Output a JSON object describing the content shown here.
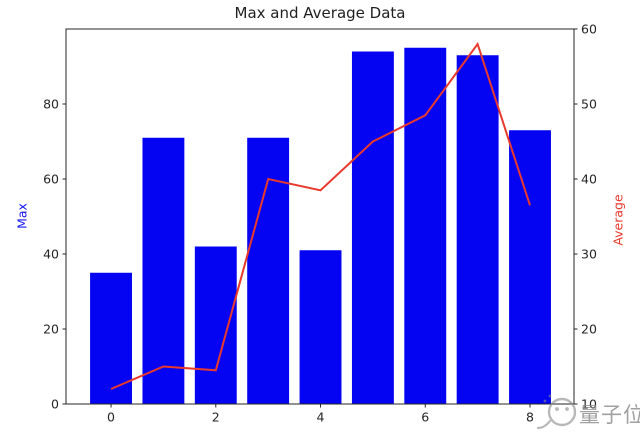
{
  "watermark": {
    "text": "量子位",
    "icon": "qbitai-face-logo",
    "color": "#8a8a8a"
  },
  "chart_data": {
    "type": "bar",
    "title": "Max and Average Data",
    "categories": [
      0,
      1,
      2,
      3,
      4,
      5,
      6,
      7,
      8
    ],
    "series": [
      {
        "name": "Max",
        "type": "bar",
        "axis": "left",
        "color": "#0404f2",
        "values": [
          35,
          71,
          42,
          71,
          41,
          94,
          95,
          93,
          73
        ]
      },
      {
        "name": "Average",
        "type": "line",
        "axis": "right",
        "color": "#e8392c",
        "values": [
          12,
          15,
          14.5,
          40,
          38.5,
          45,
          48.5,
          58,
          36.5
        ]
      }
    ],
    "x_axis": {
      "ticks": [
        0,
        2,
        4,
        6,
        8
      ],
      "range": [
        -0.86,
        8.84
      ]
    },
    "left_axis": {
      "label": "Max",
      "label_color": "#1414f0",
      "ticks": [
        0,
        20,
        40,
        60,
        80
      ],
      "range": [
        0,
        100
      ]
    },
    "right_axis": {
      "label": "Average",
      "label_color": "#e8392c",
      "ticks": [
        10,
        20,
        30,
        40,
        50,
        60
      ],
      "range": [
        10,
        60
      ]
    },
    "grid": false,
    "legend": "none",
    "bar_width_frac": 0.8,
    "axis_color": "#262626"
  }
}
